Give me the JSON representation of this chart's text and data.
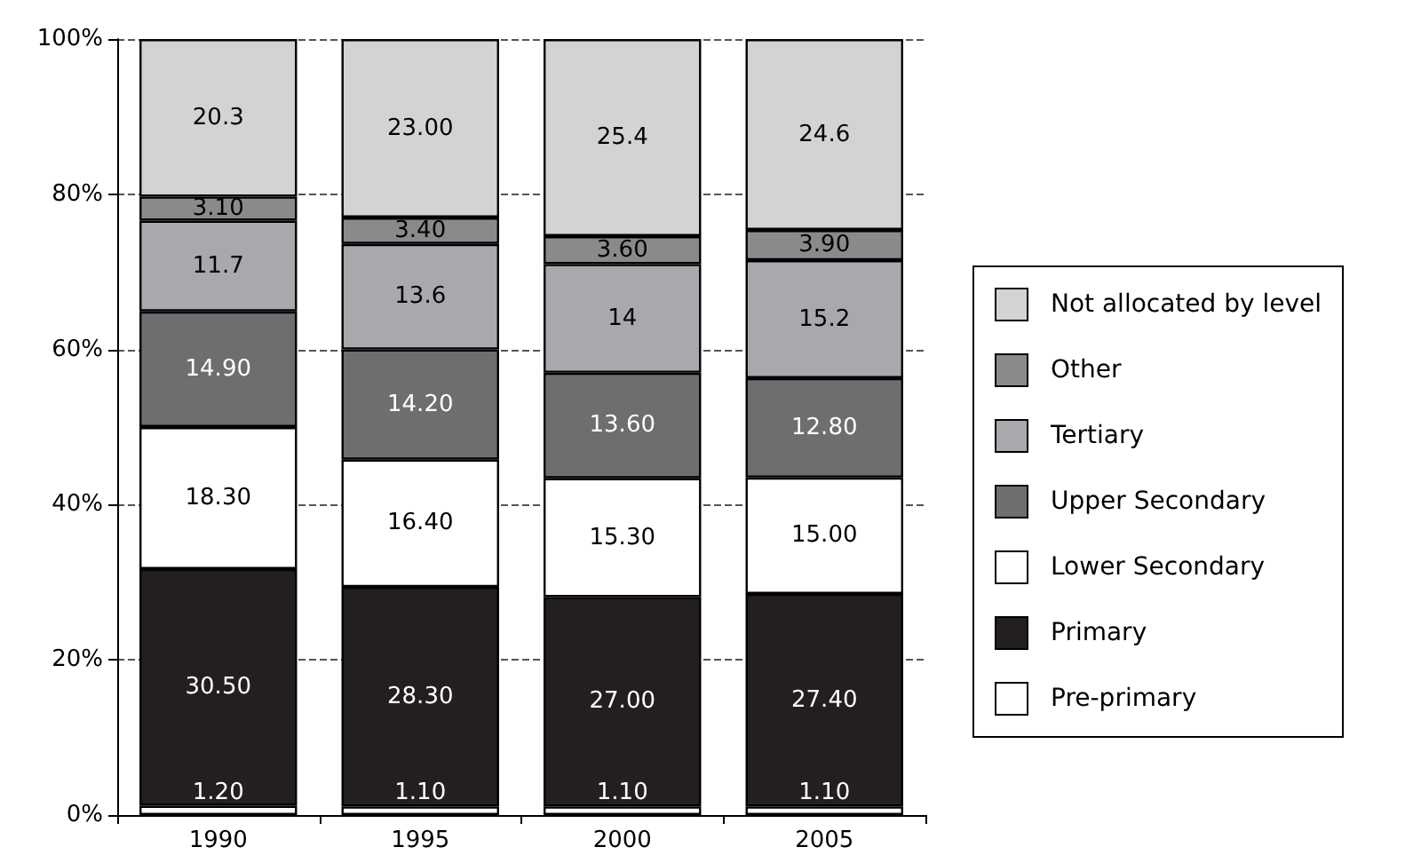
{
  "chart_data": {
    "type": "bar",
    "stacked": true,
    "categories": [
      "1990",
      "1995",
      "2000",
      "2005"
    ],
    "ylim": [
      0,
      100
    ],
    "yticks": [
      {
        "value": 0,
        "label": "0%"
      },
      {
        "value": 20,
        "label": "20%"
      },
      {
        "value": 40,
        "label": "40%"
      },
      {
        "value": 60,
        "label": "60%"
      },
      {
        "value": 80,
        "label": "80%"
      },
      {
        "value": 100,
        "label": "100%"
      }
    ],
    "grid": "y",
    "legend": "right",
    "series": [
      {
        "name": "Pre-primary",
        "color": "#ffffff",
        "values": [
          1.2,
          1.1,
          1.1,
          1.1
        ],
        "value_labels": [
          "1.20",
          "1.10",
          "1.10",
          "1.10"
        ]
      },
      {
        "name": "Primary",
        "color": "#231f20",
        "values": [
          30.5,
          28.3,
          27.0,
          27.4
        ],
        "value_labels": [
          "30.50",
          "28.30",
          "27.00",
          "27.40"
        ]
      },
      {
        "name": "Lower Secondary",
        "color": "#ffffff",
        "values": [
          18.3,
          16.4,
          15.3,
          15.0
        ],
        "value_labels": [
          "18.30",
          "16.40",
          "15.30",
          "15.00"
        ]
      },
      {
        "name": "Upper Secondary",
        "color": "#6d6e70",
        "values": [
          14.9,
          14.2,
          13.6,
          12.8
        ],
        "value_labels": [
          "14.90",
          "14.20",
          "13.60",
          "12.80"
        ]
      },
      {
        "name": "Tertiary",
        "color": "#a7a9ac",
        "values": [
          11.7,
          13.6,
          14,
          15.2
        ],
        "value_labels": [
          "11.7",
          "13.6",
          "14",
          "15.2"
        ]
      },
      {
        "name": "Other",
        "color": "#8a8a8a",
        "values": [
          3.1,
          3.4,
          3.6,
          3.9
        ],
        "value_labels": [
          "3.10",
          "3.40",
          "3.60",
          "3.90"
        ]
      },
      {
        "name": "Not allocated by level",
        "color": "#d1d3d4",
        "values": [
          20.3,
          23.0,
          25.4,
          24.6
        ],
        "value_labels": [
          "20.3",
          "23.00",
          "25.4",
          "24.6"
        ]
      }
    ]
  }
}
